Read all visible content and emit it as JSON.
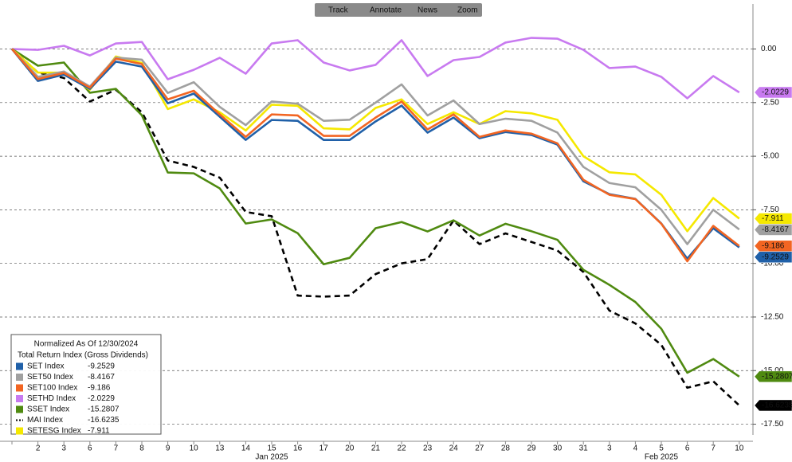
{
  "toolbar": [
    "Track",
    "Annotate",
    "News",
    "Zoom"
  ],
  "chart_data": {
    "type": "line",
    "legend": {
      "title": "Normalized As Of 12/30/2024",
      "subtitle": "Total Return Index (Gross Dividends)",
      "corner": "bottom-left"
    },
    "categories": [
      null,
      "2",
      "3",
      "6",
      "7",
      "8",
      "9",
      "10",
      "13",
      "14",
      "15",
      "16",
      "17",
      "20",
      "21",
      "22",
      "23",
      "24",
      "27",
      "28",
      "29",
      "30",
      "31",
      "3",
      "4",
      "5",
      "6",
      "7",
      "10"
    ],
    "x_group_labels": [
      "Jan 2025",
      "Feb 2025"
    ],
    "ylim": [
      -18,
      2.1
    ],
    "yticks": [
      {
        "value": 0,
        "label": "0.00"
      },
      {
        "value": -2.5,
        "label": "-2.50"
      },
      {
        "value": -5,
        "label": "-5.00"
      },
      {
        "value": -7.5,
        "label": "-7.50"
      },
      {
        "value": -10,
        "label": "-10.00"
      },
      {
        "value": -12.5,
        "label": "-12.50"
      },
      {
        "value": -15,
        "label": "-15.00"
      },
      {
        "value": -17.5,
        "label": "-17.50"
      }
    ],
    "grid": true,
    "series": [
      {
        "name": "SET Index",
        "color": "#2060a8",
        "values": [
          0,
          -1.49,
          -1.19,
          -1.86,
          -0.59,
          -0.82,
          -2.53,
          -2.08,
          -3.16,
          -4.24,
          -3.31,
          -3.35,
          -4.24,
          -4.24,
          -3.38,
          -2.64,
          -3.9,
          -3.2,
          -4.16,
          -3.87,
          -4.01,
          -4.46,
          -6.17,
          -6.77,
          -6.99,
          -8.14,
          -9.78,
          -8.36,
          -9.2529
        ]
      },
      {
        "name": "SET50 Index",
        "color": "#a0a0a0",
        "values": [
          0,
          -1.3,
          -1.05,
          -1.75,
          -0.4,
          -0.5,
          -2.05,
          -1.55,
          -2.7,
          -3.55,
          -2.45,
          -2.55,
          -3.35,
          -3.3,
          -2.5,
          -1.65,
          -3.1,
          -2.4,
          -3.5,
          -3.25,
          -3.35,
          -3.9,
          -5.5,
          -6.25,
          -6.45,
          -7.5,
          -9.1,
          -7.5,
          -8.4167
        ]
      },
      {
        "name": "SET100 Index",
        "color": "#f26522",
        "values": [
          0,
          -1.4,
          -1.12,
          -1.8,
          -0.45,
          -0.7,
          -2.35,
          -1.95,
          -3.05,
          -4.1,
          -3.05,
          -3.1,
          -4.05,
          -4.05,
          -3.2,
          -2.45,
          -3.75,
          -3.05,
          -4.1,
          -3.8,
          -3.95,
          -4.4,
          -6.1,
          -6.8,
          -7,
          -8.15,
          -9.9,
          -8.25,
          -9.186
        ]
      },
      {
        "name": "SETHD Index",
        "color": "#c87af0",
        "values": [
          0,
          -0.04,
          0.15,
          -0.3,
          0.26,
          0.33,
          -1.41,
          -0.97,
          -0.41,
          -1.15,
          0.26,
          0.41,
          -0.63,
          -1,
          -0.74,
          0.41,
          -1.26,
          -0.52,
          -0.37,
          0.3,
          0.52,
          0.48,
          -0.04,
          -0.89,
          -0.82,
          -1.3,
          -2.3,
          -1.26,
          -2.0229
        ]
      },
      {
        "name": "SSET Index",
        "color": "#4f8a10",
        "values": [
          0,
          -0.78,
          -0.63,
          -2.04,
          -1.86,
          -3.09,
          -5.76,
          -5.8,
          -6.5,
          -8.14,
          -7.95,
          -8.59,
          -10.04,
          -9.74,
          -8.36,
          -8.07,
          -8.51,
          -7.99,
          -8.7,
          -8.15,
          -8.5,
          -8.9,
          -10.3,
          -11,
          -11.8,
          -13.05,
          -15.1,
          -14.46,
          -15.2807
        ]
      },
      {
        "name": "MAI Index",
        "color": "#000000",
        "style": "dashed",
        "values": [
          0,
          -1.1,
          -1.35,
          -2.45,
          -1.9,
          -2.95,
          -5.2,
          -5.5,
          -6,
          -7.6,
          -7.8,
          -11.5,
          -11.55,
          -11.5,
          -10.5,
          -10,
          -9.8,
          -8,
          -9.1,
          -8.6,
          -9,
          -9.4,
          -10.4,
          -12.2,
          -12.8,
          -13.8,
          -15.8,
          -15.5,
          -16.6235
        ]
      },
      {
        "name": "SETESG Index",
        "color": "#f5e800",
        "values": [
          0,
          -1.1,
          -1.1,
          -1.9,
          -0.35,
          -0.65,
          -2.8,
          -2.35,
          -2.95,
          -3.8,
          -2.6,
          -2.65,
          -3.7,
          -3.75,
          -2.75,
          -2.35,
          -3.5,
          -2.95,
          -3.5,
          -2.9,
          -3,
          -3.3,
          -5,
          -5.75,
          -5.85,
          -6.8,
          -8.5,
          -6.95,
          -7.911
        ]
      }
    ]
  }
}
